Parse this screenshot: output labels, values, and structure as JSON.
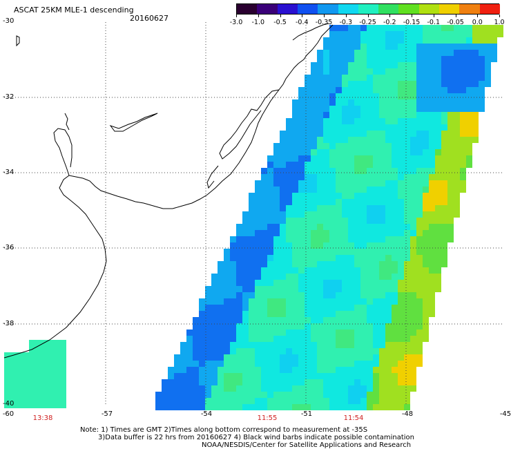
{
  "header": {
    "title": "ASCAT 25KM MLE-1 descending",
    "date": "20160627"
  },
  "colorbar": {
    "labels": [
      "-3.0",
      "-1.0",
      "-0.5",
      "-0.4",
      "-0.35",
      "-0.3",
      "-0.25",
      "-0.2",
      "-0.15",
      "-0.1",
      "-0.05",
      "0.0",
      "1.0"
    ],
    "colors": [
      "#2a0030",
      "#3a0078",
      "#2a10d0",
      "#1050f0",
      "#1098f0",
      "#10d8f0",
      "#20f0c0",
      "#30e060",
      "#60e020",
      "#b0e010",
      "#f0d000",
      "#f08010",
      "#f02010"
    ]
  },
  "axes": {
    "lat_labels": [
      "-30",
      "-32",
      "-34",
      "-36",
      "-38",
      "-40"
    ],
    "lon_labels": [
      "-60",
      "-57",
      "-54",
      "-51",
      "-48",
      "-45"
    ]
  },
  "times": [
    "13:38",
    "11:55",
    "11:54"
  ],
  "notes": [
    "Note: 1) Times are GMT 2)Times along bottom correspond to measurement at -35S",
    "3)Data buffer is 22 hrs from 20160627 4) Black wind barbs indicate possible contamination",
    "NOAA/NESDIS/Center for Satellite Applications and Research"
  ]
}
